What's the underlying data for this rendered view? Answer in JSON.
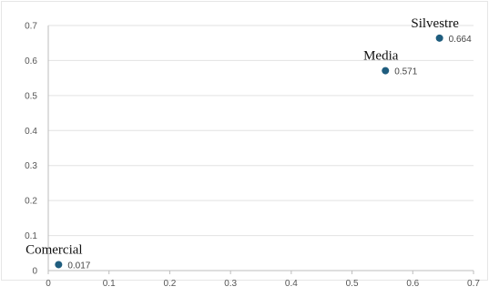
{
  "chart_data": {
    "type": "scatter",
    "title": "",
    "xlabel": "",
    "ylabel": "",
    "xlim": [
      0,
      0.7
    ],
    "ylim": [
      0,
      0.7
    ],
    "x_ticks": [
      "0",
      "0.1",
      "0.2",
      "0.3",
      "0.4",
      "0.5",
      "0.6",
      "0.7"
    ],
    "y_ticks": [
      "0",
      "0.1",
      "0.2",
      "0.3",
      "0.4",
      "0.5",
      "0.6",
      "0.7"
    ],
    "grid": "horizontal",
    "marker_color": "#1f5d7e",
    "points": [
      {
        "name": "Comercial",
        "x": 0.017,
        "y": 0.017,
        "value_label": "0.017"
      },
      {
        "name": "Media",
        "x": 0.555,
        "y": 0.571,
        "value_label": "0.571"
      },
      {
        "name": "Silvestre",
        "x": 0.644,
        "y": 0.664,
        "value_label": "0.664"
      }
    ]
  }
}
